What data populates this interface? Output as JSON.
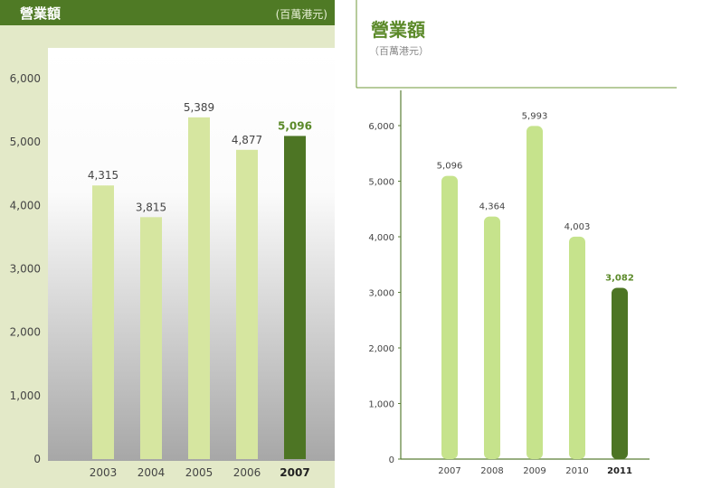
{
  "colors": {
    "light_bar": "#d6e6a0",
    "light_bar_right": "#c6e38c",
    "highlight_bar": "#4d7524",
    "highlight_text": "#5c8a2a",
    "header_bg": "#4f7a25",
    "left_panel_bg": "#e3e9c8",
    "right_title": "#5c8a2a",
    "frame_line": "#6f9a3a",
    "text": "#444444",
    "subtitle_gray": "#888888"
  },
  "chart_data": [
    {
      "type": "bar",
      "title": "營業額",
      "subtitle": "(百萬港元)",
      "categories": [
        "2003",
        "2004",
        "2005",
        "2006",
        "2007"
      ],
      "values": [
        4315,
        3815,
        5389,
        4877,
        5096
      ],
      "value_labels": [
        "4,315",
        "3,815",
        "5,389",
        "4,877",
        "5,096"
      ],
      "highlight_index": 4,
      "ylim": [
        0,
        6000
      ],
      "yticks": [
        0,
        1000,
        2000,
        3000,
        4000,
        5000,
        6000
      ],
      "ytick_labels": [
        "0",
        "1,000",
        "2,000",
        "3,000",
        "4,000",
        "5,000",
        "6,000"
      ],
      "grid": false,
      "legend": "none"
    },
    {
      "type": "bar",
      "title": "營業額",
      "subtitle": "（百萬港元）",
      "categories": [
        "2007",
        "2008",
        "2009",
        "2010",
        "2011"
      ],
      "values": [
        5096,
        4364,
        5993,
        4003,
        3082
      ],
      "value_labels": [
        "5,096",
        "4,364",
        "5,993",
        "4,003",
        "3,082"
      ],
      "highlight_index": 4,
      "ylim": [
        0,
        6000
      ],
      "yticks": [
        0,
        1000,
        2000,
        3000,
        4000,
        5000,
        6000
      ],
      "ytick_labels": [
        "0",
        "1,000",
        "2,000",
        "3,000",
        "4,000",
        "5,000",
        "6,000"
      ],
      "grid": false,
      "legend": "none"
    }
  ]
}
